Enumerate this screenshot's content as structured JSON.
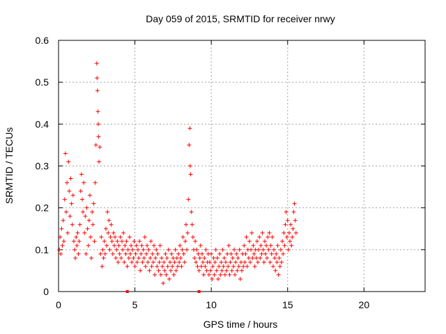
{
  "colors": {
    "series": "#ff0000",
    "axis": "#000000",
    "grid": "#a0a0a0",
    "background": "#ffffff"
  },
  "chart_data": {
    "type": "scatter",
    "title": "Day 059 of 2015, SRMTID for receiver nrwy",
    "xlabel": "GPS time / hours",
    "ylabel": "SRMTID / TECUs",
    "xlim": [
      0,
      24
    ],
    "ylim": [
      0,
      0.6
    ],
    "grid": true,
    "x_ticks": [
      0,
      5,
      10,
      15,
      20
    ],
    "y_ticks": [
      0,
      0.1,
      0.2,
      0.3,
      0.4,
      0.5,
      0.6
    ],
    "x_tick_labels": [
      "0",
      "5",
      "10",
      "15",
      "20"
    ],
    "y_tick_labels": [
      "0",
      "0.1",
      "0.2",
      "0.3",
      "0.4",
      "0.5",
      "0.6"
    ],
    "marker": "+",
    "series": [
      {
        "name": "SRMTID",
        "color": "#ff0000",
        "points": [
          [
            0.05,
            0.1
          ],
          [
            0.1,
            0.13
          ],
          [
            0.15,
            0.09
          ],
          [
            0.2,
            0.15
          ],
          [
            0.25,
            0.11
          ],
          [
            0.3,
            0.17
          ],
          [
            0.35,
            0.12
          ],
          [
            0.4,
            0.22
          ],
          [
            0.45,
            0.33
          ],
          [
            0.5,
            0.19
          ],
          [
            0.55,
            0.26
          ],
          [
            0.6,
            0.14
          ],
          [
            0.65,
            0.31
          ],
          [
            0.7,
            0.24
          ],
          [
            0.75,
            0.18
          ],
          [
            0.8,
            0.27
          ],
          [
            0.85,
            0.21
          ],
          [
            0.9,
            0.16
          ],
          [
            0.95,
            0.23
          ],
          [
            1.0,
            0.12
          ],
          [
            1.05,
            0.1
          ],
          [
            1.1,
            0.08
          ],
          [
            1.15,
            0.13
          ],
          [
            1.2,
            0.11
          ],
          [
            1.25,
            0.14
          ],
          [
            1.3,
            0.09
          ],
          [
            1.35,
            0.12
          ],
          [
            1.4,
            0.16
          ],
          [
            1.45,
            0.24
          ],
          [
            1.5,
            0.28
          ],
          [
            1.55,
            0.22
          ],
          [
            1.6,
            0.19
          ],
          [
            1.65,
            0.26
          ],
          [
            1.7,
            0.14
          ],
          [
            1.75,
            0.18
          ],
          [
            1.8,
            0.09
          ],
          [
            1.85,
            0.2
          ],
          [
            1.9,
            0.15
          ],
          [
            1.95,
            0.11
          ],
          [
            2.0,
            0.17
          ],
          [
            2.05,
            0.23
          ],
          [
            2.1,
            0.13
          ],
          [
            2.15,
            0.08
          ],
          [
            2.2,
            0.19
          ],
          [
            2.25,
            0.16
          ],
          [
            2.3,
            0.21
          ],
          [
            2.35,
            0.12
          ],
          [
            2.4,
            0.26
          ],
          [
            2.45,
            0.35
          ],
          [
            2.5,
            0.545
          ],
          [
            2.52,
            0.51
          ],
          [
            2.55,
            0.48
          ],
          [
            2.58,
            0.43
          ],
          [
            2.6,
            0.4
          ],
          [
            2.62,
            0.37
          ],
          [
            2.65,
            0.31
          ],
          [
            2.7,
            0.345
          ],
          [
            2.75,
            0.09
          ],
          [
            2.8,
            0.13
          ],
          [
            2.85,
            0.06
          ],
          [
            2.9,
            0.1
          ],
          [
            2.95,
            0.08
          ],
          [
            3.0,
            0.12
          ],
          [
            3.05,
            0.09
          ],
          [
            3.1,
            0.15
          ],
          [
            3.15,
            0.11
          ],
          [
            3.2,
            0.19
          ],
          [
            3.25,
            0.14
          ],
          [
            3.3,
            0.17
          ],
          [
            3.35,
            0.1
          ],
          [
            3.4,
            0.13
          ],
          [
            3.45,
            0.16
          ],
          [
            3.5,
            0.12
          ],
          [
            3.55,
            0.09
          ],
          [
            3.6,
            0.14
          ],
          [
            3.65,
            0.11
          ],
          [
            3.7,
            0.13
          ],
          [
            3.75,
            0.08
          ],
          [
            3.8,
            0.1
          ],
          [
            3.85,
            0.12
          ],
          [
            3.9,
            0.07
          ],
          [
            3.95,
            0.11
          ],
          [
            4.0,
            0.09
          ],
          [
            4.05,
            0.13
          ],
          [
            4.1,
            0.08
          ],
          [
            4.15,
            0.12
          ],
          [
            4.2,
            0.1
          ],
          [
            4.25,
            0.14
          ],
          [
            4.3,
            0.07
          ],
          [
            4.35,
            0.11
          ],
          [
            4.4,
            0.09
          ],
          [
            4.45,
            0.12
          ],
          [
            4.5,
            0.06
          ],
          [
            4.55,
            0.1
          ],
          [
            4.6,
            0.08
          ],
          [
            4.65,
            0.13
          ],
          [
            4.7,
            0.09
          ],
          [
            4.75,
            0.11
          ],
          [
            4.8,
            0.07
          ],
          [
            4.85,
            0.1
          ],
          [
            4.9,
            0.08
          ],
          [
            4.95,
            0.12
          ],
          [
            5.0,
            0.06
          ],
          [
            5.05,
            0.09
          ],
          [
            5.1,
            0.11
          ],
          [
            5.15,
            0.07
          ],
          [
            5.2,
            0.1
          ],
          [
            5.25,
            0.08
          ],
          [
            5.3,
            0.12
          ],
          [
            5.35,
            0.05
          ],
          [
            5.4,
            0.09
          ],
          [
            5.45,
            0.11
          ],
          [
            5.5,
            0.07
          ],
          [
            5.55,
            0.1
          ],
          [
            5.6,
            0.08
          ],
          [
            5.65,
            0.13
          ],
          [
            5.7,
            0.06
          ],
          [
            5.75,
            0.09
          ],
          [
            5.8,
            0.11
          ],
          [
            5.85,
            0.07
          ],
          [
            5.9,
            0.1
          ],
          [
            5.95,
            0.05
          ],
          [
            6.0,
            0.08
          ],
          [
            6.05,
            0.12
          ],
          [
            6.1,
            0.06
          ],
          [
            6.15,
            0.09
          ],
          [
            6.2,
            0.07
          ],
          [
            6.25,
            0.11
          ],
          [
            6.3,
            0.04
          ],
          [
            6.35,
            0.08
          ],
          [
            6.4,
            0.1
          ],
          [
            6.45,
            0.06
          ],
          [
            6.5,
            0.09
          ],
          [
            6.55,
            0.05
          ],
          [
            6.6,
            0.07
          ],
          [
            6.65,
            0.11
          ],
          [
            6.7,
            0.04
          ],
          [
            6.75,
            0.08
          ],
          [
            6.8,
            0.06
          ],
          [
            6.85,
            0.02
          ],
          [
            6.9,
            0.07
          ],
          [
            6.95,
            0.05
          ],
          [
            7.0,
            0.09
          ],
          [
            7.05,
            0.04
          ],
          [
            7.1,
            0.08
          ],
          [
            7.15,
            0.06
          ],
          [
            7.2,
            0.1
          ],
          [
            7.25,
            0.03
          ],
          [
            7.3,
            0.07
          ],
          [
            7.35,
            0.05
          ],
          [
            7.4,
            0.09
          ],
          [
            7.45,
            0.06
          ],
          [
            7.5,
            0.08
          ],
          [
            7.55,
            0.04
          ],
          [
            7.6,
            0.07
          ],
          [
            7.65,
            0.1
          ],
          [
            7.7,
            0.05
          ],
          [
            7.75,
            0.08
          ],
          [
            7.8,
            0.06
          ],
          [
            7.85,
            0.09
          ],
          [
            7.9,
            0.07
          ],
          [
            7.95,
            0.11
          ],
          [
            8.0,
            0.08
          ],
          [
            8.05,
            0.06
          ],
          [
            8.1,
            0.1
          ],
          [
            8.15,
            0.13
          ],
          [
            8.2,
            0.09
          ],
          [
            8.25,
            0.07
          ],
          [
            8.3,
            0.12
          ],
          [
            8.35,
            0.16
          ],
          [
            8.4,
            0.1
          ],
          [
            8.45,
            0.14
          ],
          [
            8.5,
            0.22
          ],
          [
            8.55,
            0.35
          ],
          [
            8.6,
            0.39
          ],
          [
            8.62,
            0.3
          ],
          [
            8.65,
            0.28
          ],
          [
            8.7,
            0.19
          ],
          [
            8.75,
            0.16
          ],
          [
            8.8,
            0.13
          ],
          [
            8.85,
            0.1
          ],
          [
            8.9,
            0.08
          ],
          [
            8.95,
            0.12
          ],
          [
            9.0,
            0.07
          ],
          [
            9.05,
            0.1
          ],
          [
            9.1,
            0.06
          ],
          [
            9.15,
            0.09
          ],
          [
            9.2,
            0.05
          ],
          [
            9.25,
            0.08
          ],
          [
            9.3,
            0.11
          ],
          [
            9.35,
            0.06
          ],
          [
            9.4,
            0.09
          ],
          [
            9.45,
            0.07
          ],
          [
            9.5,
            0.04
          ],
          [
            9.55,
            0.08
          ],
          [
            9.6,
            0.06
          ],
          [
            9.65,
            0.1
          ],
          [
            9.7,
            0.05
          ],
          [
            9.75,
            0.07
          ],
          [
            9.8,
            0.09
          ],
          [
            9.85,
            0.04
          ],
          [
            9.9,
            0.07
          ],
          [
            9.95,
            0.05
          ],
          [
            10.0,
            0.09
          ],
          [
            10.05,
            0.03
          ],
          [
            10.1,
            0.06
          ],
          [
            10.15,
            0.08
          ],
          [
            10.2,
            0.04
          ],
          [
            10.25,
            0.07
          ],
          [
            10.3,
            0.1
          ],
          [
            10.35,
            0.05
          ],
          [
            10.4,
            0.08
          ],
          [
            10.45,
            0.03
          ],
          [
            10.5,
            0.06
          ],
          [
            10.55,
            0.09
          ],
          [
            10.6,
            0.04
          ],
          [
            10.65,
            0.07
          ],
          [
            10.7,
            0.05
          ],
          [
            10.75,
            0.1
          ],
          [
            10.8,
            0.06
          ],
          [
            10.85,
            0.08
          ],
          [
            10.9,
            0.04
          ],
          [
            10.95,
            0.07
          ],
          [
            11.0,
            0.05
          ],
          [
            11.05,
            0.09
          ],
          [
            11.1,
            0.06
          ],
          [
            11.15,
            0.11
          ],
          [
            11.2,
            0.04
          ],
          [
            11.25,
            0.07
          ],
          [
            11.3,
            0.09
          ],
          [
            11.35,
            0.05
          ],
          [
            11.4,
            0.08
          ],
          [
            11.45,
            0.06
          ],
          [
            11.5,
            0.1
          ],
          [
            11.55,
            0.04
          ],
          [
            11.6,
            0.07
          ],
          [
            11.65,
            0.09
          ],
          [
            11.7,
            0.05
          ],
          [
            11.75,
            0.08
          ],
          [
            11.8,
            0.06
          ],
          [
            11.85,
            0.1
          ],
          [
            11.9,
            0.03
          ],
          [
            11.95,
            0.07
          ],
          [
            12.0,
            0.05
          ],
          [
            12.05,
            0.09
          ],
          [
            12.1,
            0.06
          ],
          [
            12.15,
            0.11
          ],
          [
            12.2,
            0.07
          ],
          [
            12.25,
            0.09
          ],
          [
            12.3,
            0.13
          ],
          [
            12.35,
            0.06
          ],
          [
            12.4,
            0.1
          ],
          [
            12.45,
            0.08
          ],
          [
            12.5,
            0.12
          ],
          [
            12.55,
            0.07
          ],
          [
            12.6,
            0.1
          ],
          [
            12.65,
            0.14
          ],
          [
            12.7,
            0.08
          ],
          [
            12.75,
            0.11
          ],
          [
            12.8,
            0.09
          ],
          [
            12.85,
            0.06
          ],
          [
            12.9,
            0.1
          ],
          [
            12.95,
            0.08
          ],
          [
            13.0,
            0.12
          ],
          [
            13.05,
            0.07
          ],
          [
            13.1,
            0.1
          ],
          [
            13.15,
            0.13
          ],
          [
            13.2,
            0.08
          ],
          [
            13.25,
            0.11
          ],
          [
            13.3,
            0.09
          ],
          [
            13.35,
            0.14
          ],
          [
            13.4,
            0.1
          ],
          [
            13.45,
            0.07
          ],
          [
            13.5,
            0.12
          ],
          [
            13.55,
            0.09
          ],
          [
            13.6,
            0.11
          ],
          [
            13.65,
            0.08
          ],
          [
            13.7,
            0.13
          ],
          [
            13.75,
            0.1
          ],
          [
            13.8,
            0.14
          ],
          [
            13.85,
            0.07
          ],
          [
            13.9,
            0.11
          ],
          [
            13.95,
            0.09
          ],
          [
            14.0,
            0.13
          ],
          [
            14.05,
            0.06
          ],
          [
            14.1,
            0.1
          ],
          [
            14.15,
            0.08
          ],
          [
            14.2,
            0.05
          ],
          [
            14.25,
            0.09
          ],
          [
            14.3,
            0.07
          ],
          [
            14.35,
            0.11
          ],
          [
            14.4,
            0.04
          ],
          [
            14.45,
            0.08
          ],
          [
            14.5,
            0.06
          ],
          [
            14.55,
            0.1
          ],
          [
            14.6,
            0.07
          ],
          [
            14.65,
            0.12
          ],
          [
            14.7,
            0.09
          ],
          [
            14.75,
            0.14
          ],
          [
            14.8,
            0.11
          ],
          [
            14.85,
            0.16
          ],
          [
            14.9,
            0.19
          ],
          [
            14.95,
            0.13
          ],
          [
            15.0,
            0.17
          ],
          [
            15.05,
            0.1
          ],
          [
            15.1,
            0.14
          ],
          [
            15.15,
            0.12
          ],
          [
            15.2,
            0.16
          ],
          [
            15.25,
            0.11
          ],
          [
            15.3,
            0.13
          ],
          [
            15.35,
            0.15
          ],
          [
            15.4,
            0.19
          ],
          [
            15.45,
            0.21
          ],
          [
            15.5,
            0.17
          ],
          [
            15.55,
            0.14
          ]
        ]
      }
    ]
  }
}
